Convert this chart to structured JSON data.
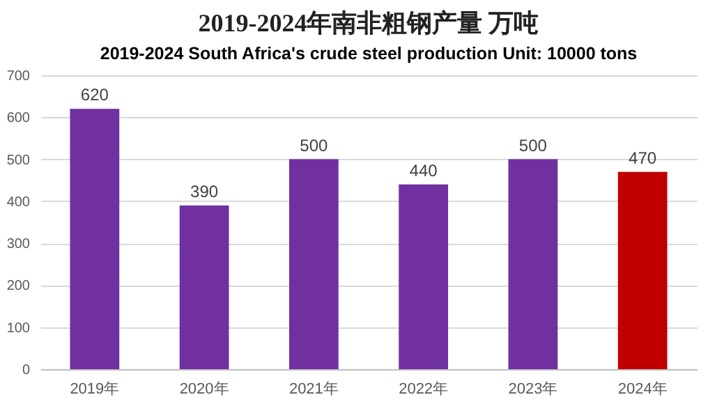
{
  "chart_data": {
    "type": "bar",
    "title": "2019-2024年南非粗钢产量 万吨",
    "subtitle": "2019-2024 South Africa's crude steel production Unit: 10000 tons",
    "categories": [
      "2019年",
      "2020年",
      "2021年",
      "2022年",
      "2023年",
      "2024年"
    ],
    "values": [
      620,
      390,
      500,
      440,
      500,
      470
    ],
    "colors": [
      "#7030a0",
      "#7030a0",
      "#7030a0",
      "#7030a0",
      "#7030a0",
      "#c00000"
    ],
    "ylim": [
      0,
      700
    ],
    "yticks": [
      0,
      100,
      200,
      300,
      400,
      500,
      600,
      700
    ],
    "grid": "y",
    "data_labels": true
  }
}
